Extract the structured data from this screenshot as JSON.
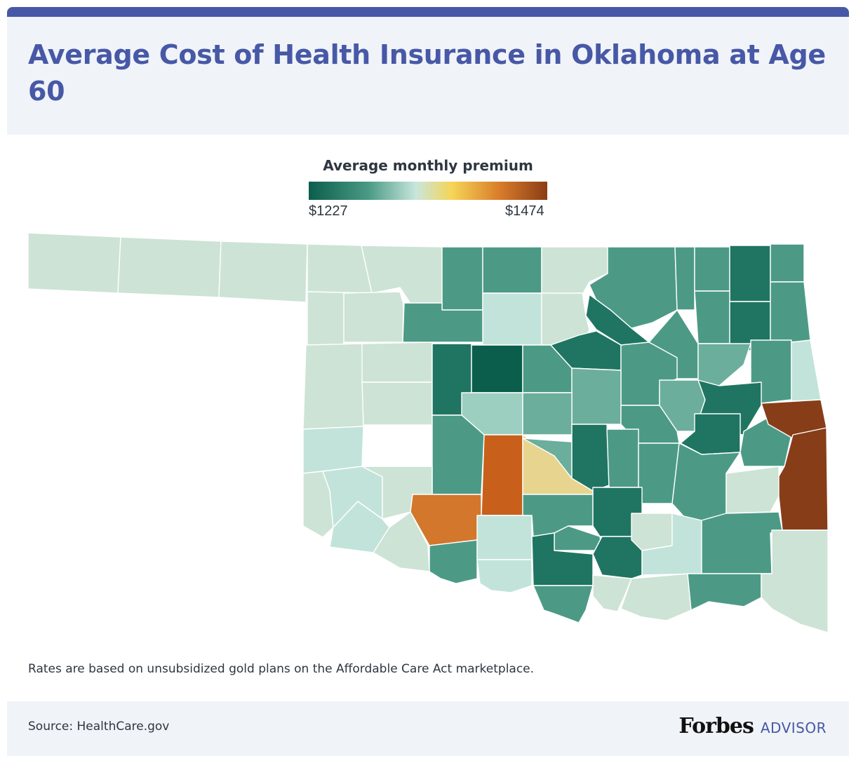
{
  "title": "Average Cost of Health Insurance in Oklahoma at Age 60",
  "legend": {
    "title": "Average monthly premium",
    "min_label": "$1227",
    "max_label": "$1474",
    "min_value": 1227,
    "max_value": 1474,
    "color_stops": [
      "#0b5e4b",
      "#4a9a85",
      "#c8e6dc",
      "#f5d557",
      "#d97c2a",
      "#8a3d16"
    ]
  },
  "footnote": "Rates are based on unsubsidized gold plans on the Affordable Care Act marketplace.",
  "footer": {
    "source": "Source: HealthCare.gov",
    "brand": "Forbes",
    "brand_sub": "ADVISOR"
  },
  "colors": {
    "accent": "#4758a6",
    "header_bg": "#f0f3f8",
    "text": "#2f3640",
    "border": "#ffffff"
  },
  "map_data": {
    "region": "Oklahoma counties (unlabeled)",
    "levels": {
      "lowest": "#0b5e4b",
      "very_low": "#1f7562",
      "low": "#2e8572",
      "low_mid": "#4c9a86",
      "mid_low": "#6bae9c",
      "mid": "#9ccfbf",
      "light": "#c2e3da",
      "pale": "#cde3d5",
      "gold_pale": "#e7d58f",
      "orange": "#d2772b",
      "orange_dark": "#c8601c",
      "brown": "#873d18"
    }
  }
}
